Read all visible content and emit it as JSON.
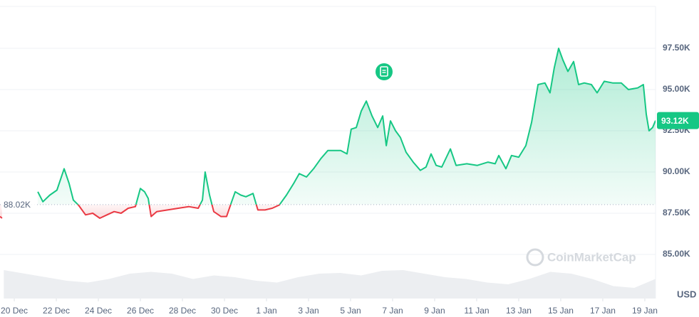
{
  "chart_data": {
    "type": "line",
    "x": [
      -0.68,
      -0.58,
      -0.5,
      1.12,
      1.36,
      1.69,
      2.03,
      2.37,
      2.61,
      2.81,
      3.05,
      3.39,
      3.73,
      4.07,
      4.41,
      4.75,
      5.08,
      5.42,
      5.76,
      6.0,
      6.2,
      6.37,
      6.51,
      6.78,
      7.29,
      7.8,
      8.3,
      8.75,
      8.95,
      9.08,
      9.29,
      9.49,
      9.83,
      10.1,
      10.34,
      10.51,
      10.78,
      11.02,
      11.36,
      11.59,
      11.93,
      12.27,
      12.61,
      12.95,
      13.29,
      13.56,
      13.9,
      14.24,
      14.58,
      14.92,
      15.19,
      15.53,
      15.83,
      16.03,
      16.27,
      16.51,
      16.75,
      17.02,
      17.29,
      17.53,
      17.7,
      17.9,
      18.14,
      18.37,
      18.64,
      18.98,
      19.32,
      19.59,
      19.83,
      20.07,
      20.34,
      20.75,
      21.02,
      21.53,
      22.03,
      22.54,
      22.88,
      23.05,
      23.39,
      23.66,
      24.0,
      24.34,
      24.61,
      24.92,
      25.25,
      25.49,
      25.69,
      25.9,
      26.1,
      26.34,
      26.61,
      26.85,
      27.12,
      27.46,
      27.73,
      28.07,
      28.47,
      28.88,
      29.22,
      29.66,
      29.93,
      30.07,
      30.2,
      30.37,
      30.51
    ],
    "values": [
      87300,
      87200,
      null,
      88800,
      88200,
      88600,
      88900,
      90200,
      89300,
      88300,
      88000,
      87400,
      87500,
      87200,
      87400,
      87600,
      87500,
      87800,
      87900,
      89000,
      88800,
      88400,
      87300,
      87600,
      87700,
      87800,
      87900,
      87800,
      88300,
      90000,
      88600,
      87600,
      87300,
      87300,
      88200,
      88800,
      88600,
      88500,
      88700,
      87700,
      87700,
      87800,
      88000,
      88600,
      89300,
      89900,
      89700,
      90200,
      90800,
      91300,
      91300,
      91300,
      91100,
      92600,
      92700,
      93700,
      94300,
      93400,
      92700,
      93400,
      91600,
      93100,
      92500,
      92100,
      91200,
      90600,
      90100,
      90300,
      91100,
      90400,
      90300,
      91400,
      90400,
      90500,
      90400,
      90600,
      90500,
      91000,
      90200,
      91000,
      90900,
      91600,
      93000,
      95300,
      95400,
      94800,
      96300,
      97500,
      96800,
      96100,
      96700,
      95300,
      95400,
      95300,
      94800,
      95500,
      95400,
      95400,
      95000,
      95100,
      95300,
      93500,
      92500,
      92700,
      93120
    ],
    "up_color": "#16c784",
    "down_color": "#ea3943",
    "xlim": [
      -0.68,
      30.51
    ],
    "ylim": [
      82500,
      100000
    ],
    "xticks": [
      {
        "value": 0,
        "label": "20 Dec"
      },
      {
        "value": 2,
        "label": "22 Dec"
      },
      {
        "value": 4,
        "label": "24 Dec"
      },
      {
        "value": 6,
        "label": "26 Dec"
      },
      {
        "value": 8,
        "label": "28 Dec"
      },
      {
        "value": 10,
        "label": "30 Dec"
      },
      {
        "value": 12,
        "label": "1 Jan"
      },
      {
        "value": 14,
        "label": "3 Jan"
      },
      {
        "value": 16,
        "label": "5 Jan"
      },
      {
        "value": 18,
        "label": "7 Jan"
      },
      {
        "value": 20,
        "label": "9 Jan"
      },
      {
        "value": 22,
        "label": "11 Jan"
      },
      {
        "value": 24,
        "label": "13 Jan"
      },
      {
        "value": 26,
        "label": "15 Jan"
      },
      {
        "value": 28,
        "label": "17 Jan"
      },
      {
        "value": 30,
        "label": "19 Jan"
      }
    ],
    "yticks": [
      {
        "value": 85000,
        "label": "85.00K"
      },
      {
        "value": 87500,
        "label": "87.50K"
      },
      {
        "value": 90000,
        "label": "90.00K"
      },
      {
        "value": 92500,
        "label": "92.50K"
      },
      {
        "value": 95000,
        "label": "95.00K"
      },
      {
        "value": 97500,
        "label": "97.50K"
      }
    ],
    "grid": true,
    "baseline": {
      "value": 88020,
      "label": "88.02K"
    },
    "last_price": {
      "value": 93120,
      "label": "93.12K"
    },
    "unit_label": "USD",
    "watermark": "CoinMarketCap",
    "volume": {
      "x": [
        -0.5,
        0.5,
        1.5,
        2.5,
        3.5,
        4.5,
        5.5,
        6.5,
        7.5,
        8.5,
        9.5,
        10.5,
        11.5,
        12.5,
        13.5,
        14.5,
        15.5,
        16.5,
        17.5,
        18.5,
        19.5,
        20.5,
        21.5,
        22.5,
        23.5,
        24.5,
        25.5,
        26.5,
        27.5,
        28.5,
        29.5,
        30.5
      ],
      "values": [
        80,
        70,
        60,
        50,
        45,
        55,
        70,
        75,
        70,
        55,
        65,
        60,
        50,
        45,
        60,
        70,
        72,
        65,
        78,
        80,
        70,
        60,
        55,
        45,
        40,
        55,
        75,
        70,
        55,
        35,
        30,
        55
      ],
      "vlim": [
        0,
        100
      ],
      "color": "#eceef1"
    }
  }
}
